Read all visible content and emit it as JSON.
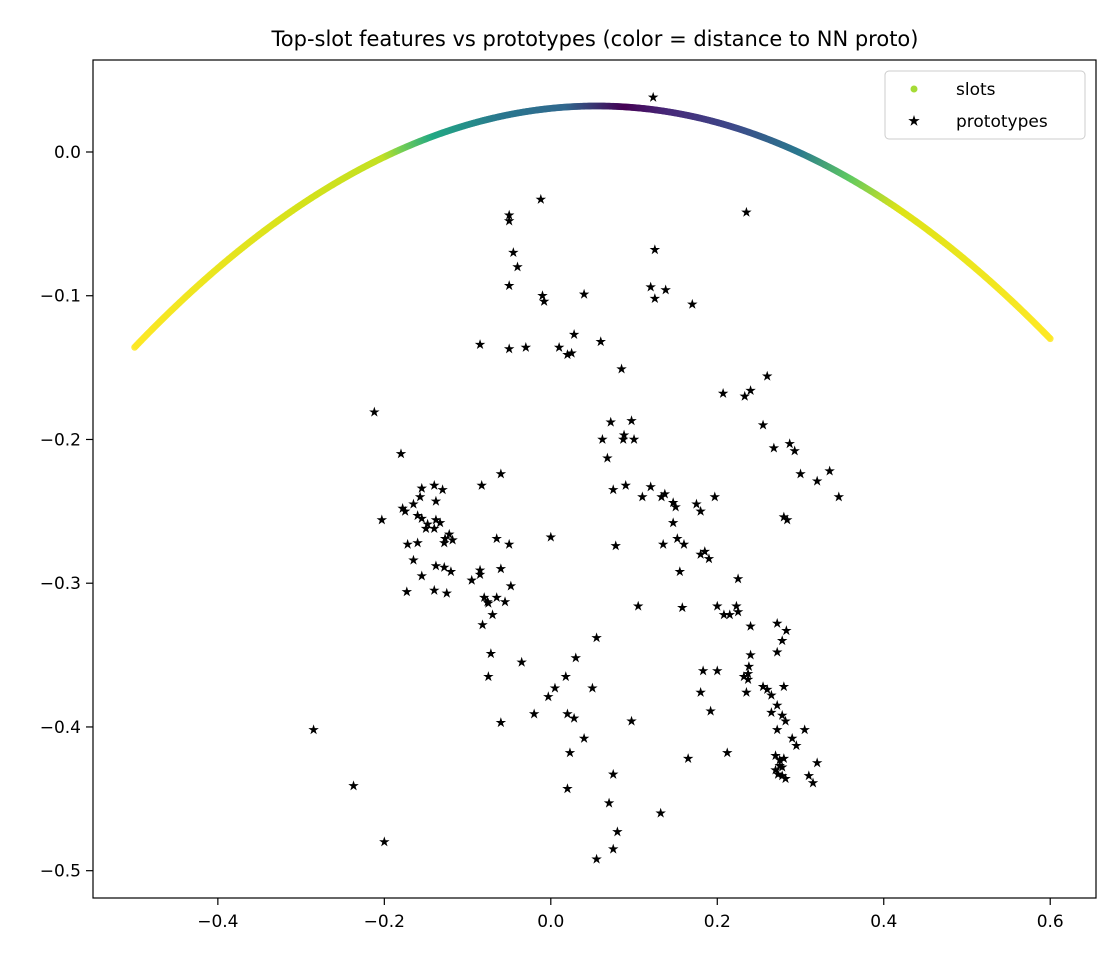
{
  "chart_data": {
    "type": "scatter",
    "title": "Top-slot features vs prototypes (color = distance to NN proto)",
    "xlabel": "",
    "ylabel": "",
    "xlim": [
      -0.55,
      0.655
    ],
    "ylim": [
      -0.519,
      0.064
    ],
    "x_ticks": [
      -0.4,
      -0.2,
      0.0,
      0.2,
      0.4,
      0.6
    ],
    "y_ticks": [
      0.0,
      -0.1,
      -0.2,
      -0.3,
      -0.4,
      -0.5
    ],
    "x_tick_labels": [
      "−0.4",
      "−0.2",
      "0.0",
      "0.2",
      "0.4",
      "0.6"
    ],
    "y_tick_labels": [
      "0.0",
      "−0.1",
      "−0.2",
      "−0.3",
      "−0.4",
      "−0.5"
    ],
    "grid": false,
    "legend_placement": "top-right",
    "colormap": "viridis",
    "legend": {
      "slots_label": "slots",
      "prototypes_label": "prototypes",
      "slots_color": "#a5db36",
      "prototypes_color": "#000000"
    },
    "slots_curve": {
      "description_of_shape": "parabola",
      "vertex_x": 0.055,
      "vertex_y": 0.032,
      "curvature": 0.545,
      "x_range": [
        -0.5,
        0.6
      ],
      "color_stops": [
        {
          "x": -0.5,
          "color": "#fde725"
        },
        {
          "x": -0.3,
          "color": "#d5e21a"
        },
        {
          "x": -0.2,
          "color": "#c2df23"
        },
        {
          "x": -0.18,
          "color": "#7ad151"
        },
        {
          "x": -0.14,
          "color": "#22a884"
        },
        {
          "x": -0.06,
          "color": "#2a788e"
        },
        {
          "x": 0.02,
          "color": "#31688e"
        },
        {
          "x": 0.09,
          "color": "#440154"
        },
        {
          "x": 0.14,
          "color": "#482878"
        },
        {
          "x": 0.22,
          "color": "#3e4989"
        },
        {
          "x": 0.3,
          "color": "#2a788e"
        },
        {
          "x": 0.36,
          "color": "#5ec962"
        },
        {
          "x": 0.42,
          "color": "#dde318"
        },
        {
          "x": 0.6,
          "color": "#fde725"
        }
      ]
    },
    "prototypes": [
      [
        0.123,
        0.038
      ],
      [
        -0.012,
        -0.033
      ],
      [
        -0.05,
        -0.044
      ],
      [
        -0.05,
        -0.048
      ],
      [
        0.235,
        -0.042
      ],
      [
        -0.045,
        -0.07
      ],
      [
        -0.04,
        -0.08
      ],
      [
        0.125,
        -0.068
      ],
      [
        -0.05,
        -0.093
      ],
      [
        0.12,
        -0.094
      ],
      [
        0.138,
        -0.096
      ],
      [
        -0.01,
        -0.1
      ],
      [
        0.04,
        -0.099
      ],
      [
        -0.008,
        -0.104
      ],
      [
        0.125,
        -0.102
      ],
      [
        0.17,
        -0.106
      ],
      [
        -0.085,
        -0.134
      ],
      [
        -0.05,
        -0.137
      ],
      [
        -0.03,
        -0.136
      ],
      [
        0.028,
        -0.127
      ],
      [
        0.01,
        -0.136
      ],
      [
        0.02,
        -0.141
      ],
      [
        0.06,
        -0.132
      ],
      [
        0.025,
        -0.14
      ],
      [
        0.085,
        -0.151
      ],
      [
        0.26,
        -0.156
      ],
      [
        0.24,
        -0.166
      ],
      [
        0.233,
        -0.17
      ],
      [
        0.207,
        -0.168
      ],
      [
        -0.212,
        -0.181
      ],
      [
        0.097,
        -0.187
      ],
      [
        0.072,
        -0.188
      ],
      [
        0.062,
        -0.2
      ],
      [
        0.088,
        -0.197
      ],
      [
        0.087,
        -0.2
      ],
      [
        0.1,
        -0.2
      ],
      [
        0.255,
        -0.19
      ],
      [
        0.068,
        -0.213
      ],
      [
        0.268,
        -0.206
      ],
      [
        0.287,
        -0.203
      ],
      [
        0.293,
        -0.208
      ],
      [
        -0.18,
        -0.21
      ],
      [
        0.335,
        -0.222
      ],
      [
        0.3,
        -0.224
      ],
      [
        0.32,
        -0.229
      ],
      [
        0.346,
        -0.24
      ],
      [
        -0.083,
        -0.232
      ],
      [
        -0.06,
        -0.224
      ],
      [
        -0.14,
        -0.232
      ],
      [
        -0.13,
        -0.235
      ],
      [
        -0.155,
        -0.234
      ],
      [
        -0.138,
        -0.243
      ],
      [
        -0.165,
        -0.245
      ],
      [
        -0.157,
        -0.24
      ],
      [
        -0.178,
        -0.248
      ],
      [
        -0.175,
        -0.25
      ],
      [
        0.09,
        -0.232
      ],
      [
        0.075,
        -0.235
      ],
      [
        0.12,
        -0.233
      ],
      [
        0.133,
        -0.24
      ],
      [
        0.137,
        -0.238
      ],
      [
        0.147,
        -0.244
      ],
      [
        0.15,
        -0.247
      ],
      [
        0.175,
        -0.245
      ],
      [
        0.18,
        -0.25
      ],
      [
        0.197,
        -0.24
      ],
      [
        0.11,
        -0.24
      ],
      [
        -0.203,
        -0.256
      ],
      [
        -0.155,
        -0.255
      ],
      [
        -0.16,
        -0.253
      ],
      [
        -0.148,
        -0.259
      ],
      [
        -0.138,
        -0.256
      ],
      [
        -0.133,
        -0.258
      ],
      [
        -0.14,
        -0.262
      ],
      [
        -0.15,
        -0.262
      ],
      [
        0.147,
        -0.258
      ],
      [
        0.28,
        -0.254
      ],
      [
        0.284,
        -0.256
      ],
      [
        0.0,
        -0.268
      ],
      [
        -0.065,
        -0.269
      ],
      [
        -0.05,
        -0.273
      ],
      [
        -0.122,
        -0.266
      ],
      [
        -0.127,
        -0.269
      ],
      [
        -0.118,
        -0.27
      ],
      [
        -0.128,
        -0.272
      ],
      [
        -0.16,
        -0.272
      ],
      [
        -0.172,
        -0.273
      ],
      [
        0.152,
        -0.269
      ],
      [
        0.16,
        -0.273
      ],
      [
        0.135,
        -0.273
      ],
      [
        0.078,
        -0.274
      ],
      [
        0.18,
        -0.28
      ],
      [
        0.185,
        -0.278
      ],
      [
        0.19,
        -0.283
      ],
      [
        -0.165,
        -0.284
      ],
      [
        -0.138,
        -0.288
      ],
      [
        -0.128,
        -0.289
      ],
      [
        -0.155,
        -0.295
      ],
      [
        -0.12,
        -0.292
      ],
      [
        -0.095,
        -0.298
      ],
      [
        -0.085,
        -0.291
      ],
      [
        -0.085,
        -0.294
      ],
      [
        -0.06,
        -0.29
      ],
      [
        0.155,
        -0.292
      ],
      [
        0.225,
        -0.297
      ],
      [
        -0.048,
        -0.302
      ],
      [
        -0.173,
        -0.306
      ],
      [
        -0.14,
        -0.305
      ],
      [
        -0.125,
        -0.307
      ],
      [
        -0.08,
        -0.31
      ],
      [
        -0.076,
        -0.313
      ],
      [
        -0.065,
        -0.31
      ],
      [
        -0.075,
        -0.314
      ],
      [
        -0.055,
        -0.313
      ],
      [
        0.105,
        -0.316
      ],
      [
        0.158,
        -0.317
      ],
      [
        0.2,
        -0.316
      ],
      [
        0.223,
        -0.316
      ],
      [
        0.208,
        -0.322
      ],
      [
        0.215,
        -0.322
      ],
      [
        0.225,
        -0.32
      ],
      [
        -0.07,
        -0.322
      ],
      [
        -0.082,
        -0.329
      ],
      [
        0.24,
        -0.33
      ],
      [
        0.272,
        -0.328
      ],
      [
        0.283,
        -0.333
      ],
      [
        0.055,
        -0.338
      ],
      [
        0.278,
        -0.34
      ],
      [
        -0.072,
        -0.349
      ],
      [
        -0.035,
        -0.355
      ],
      [
        0.03,
        -0.352
      ],
      [
        0.24,
        -0.35
      ],
      [
        0.272,
        -0.348
      ],
      [
        0.238,
        -0.358
      ],
      [
        0.183,
        -0.361
      ],
      [
        0.2,
        -0.361
      ],
      [
        0.237,
        -0.363
      ],
      [
        0.232,
        -0.365
      ],
      [
        -0.075,
        -0.365
      ],
      [
        0.018,
        -0.365
      ],
      [
        0.237,
        -0.367
      ],
      [
        0.255,
        -0.372
      ],
      [
        0.005,
        -0.373
      ],
      [
        0.05,
        -0.373
      ],
      [
        0.26,
        -0.374
      ],
      [
        0.28,
        -0.372
      ],
      [
        0.18,
        -0.376
      ],
      [
        0.235,
        -0.376
      ],
      [
        0.265,
        -0.378
      ],
      [
        -0.003,
        -0.379
      ],
      [
        0.272,
        -0.385
      ],
      [
        -0.02,
        -0.391
      ],
      [
        0.02,
        -0.391
      ],
      [
        0.028,
        -0.394
      ],
      [
        0.192,
        -0.389
      ],
      [
        0.265,
        -0.39
      ],
      [
        0.278,
        -0.392
      ],
      [
        0.282,
        -0.396
      ],
      [
        -0.06,
        -0.397
      ],
      [
        0.097,
        -0.396
      ],
      [
        -0.285,
        -0.402
      ],
      [
        0.272,
        -0.402
      ],
      [
        0.305,
        -0.402
      ],
      [
        0.04,
        -0.408
      ],
      [
        0.29,
        -0.408
      ],
      [
        0.295,
        -0.413
      ],
      [
        0.023,
        -0.418
      ],
      [
        0.165,
        -0.422
      ],
      [
        0.212,
        -0.418
      ],
      [
        0.27,
        -0.42
      ],
      [
        0.275,
        -0.423
      ],
      [
        0.28,
        -0.422
      ],
      [
        0.275,
        -0.427
      ],
      [
        0.27,
        -0.43
      ],
      [
        0.278,
        -0.428
      ],
      [
        0.32,
        -0.425
      ],
      [
        0.278,
        -0.434
      ],
      [
        0.282,
        -0.436
      ],
      [
        0.273,
        -0.433
      ],
      [
        0.31,
        -0.434
      ],
      [
        0.315,
        -0.439
      ],
      [
        0.075,
        -0.433
      ],
      [
        -0.237,
        -0.441
      ],
      [
        0.02,
        -0.443
      ],
      [
        0.07,
        -0.453
      ],
      [
        0.132,
        -0.46
      ],
      [
        0.08,
        -0.473
      ],
      [
        -0.2,
        -0.48
      ],
      [
        0.075,
        -0.485
      ],
      [
        0.055,
        -0.492
      ]
    ]
  }
}
